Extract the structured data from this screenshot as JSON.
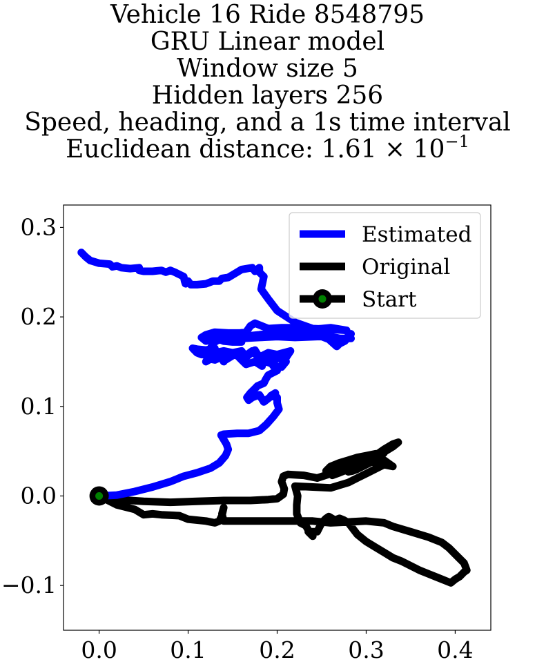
{
  "chart_data": {
    "type": "line",
    "title_lines": [
      "Vehicle 16 Ride 8548795",
      "GRU Linear model",
      "Window size 5",
      "Hidden layers 256",
      "Speed, heading, and a 1s time interval"
    ],
    "distance_label": "Euclidean distance: ",
    "distance_mantissa": "1.61",
    "distance_times": " × 10",
    "distance_exponent": "−1",
    "xlabel": "",
    "ylabel": "",
    "xlim": [
      -0.04,
      0.44
    ],
    "ylim": [
      -0.15,
      0.325
    ],
    "xticks": [
      0.0,
      0.1,
      0.2,
      0.3,
      0.4
    ],
    "xtick_labels": [
      "0.0",
      "0.1",
      "0.2",
      "0.3",
      "0.4"
    ],
    "yticks": [
      -0.1,
      0.0,
      0.1,
      0.2,
      0.3
    ],
    "ytick_labels": [
      "−0.1",
      "0.0",
      "0.1",
      "0.2",
      "0.3"
    ],
    "grid": false,
    "legend_position": "top-right",
    "series": [
      {
        "name": "Estimated",
        "color": "#0000ff",
        "points": [
          [
            0.0,
            0.0
          ],
          [
            0.02,
            0.001
          ],
          [
            0.04,
            0.005
          ],
          [
            0.06,
            0.01
          ],
          [
            0.08,
            0.016
          ],
          [
            0.095,
            0.022
          ],
          [
            0.11,
            0.026
          ],
          [
            0.125,
            0.031
          ],
          [
            0.135,
            0.037
          ],
          [
            0.142,
            0.045
          ],
          [
            0.145,
            0.052
          ],
          [
            0.143,
            0.058
          ],
          [
            0.14,
            0.063
          ],
          [
            0.137,
            0.068
          ],
          [
            0.14,
            0.069
          ],
          [
            0.155,
            0.07
          ],
          [
            0.168,
            0.07
          ],
          [
            0.18,
            0.073
          ],
          [
            0.188,
            0.08
          ],
          [
            0.196,
            0.089
          ],
          [
            0.202,
            0.097
          ],
          [
            0.2,
            0.104
          ],
          [
            0.2,
            0.11
          ],
          [
            0.193,
            0.112
          ],
          [
            0.198,
            0.115
          ],
          [
            0.185,
            0.105
          ],
          [
            0.18,
            0.113
          ],
          [
            0.172,
            0.11
          ],
          [
            0.168,
            0.107
          ],
          [
            0.166,
            0.11
          ],
          [
            0.17,
            0.115
          ],
          [
            0.175,
            0.12
          ],
          [
            0.178,
            0.123
          ],
          [
            0.185,
            0.126
          ],
          [
            0.187,
            0.13
          ],
          [
            0.19,
            0.135
          ],
          [
            0.2,
            0.14
          ],
          [
            0.195,
            0.146
          ],
          [
            0.205,
            0.144
          ],
          [
            0.21,
            0.15
          ],
          [
            0.202,
            0.155
          ],
          [
            0.195,
            0.15
          ],
          [
            0.185,
            0.153
          ],
          [
            0.183,
            0.145
          ],
          [
            0.175,
            0.15
          ],
          [
            0.165,
            0.147
          ],
          [
            0.16,
            0.152
          ],
          [
            0.155,
            0.157
          ],
          [
            0.147,
            0.16
          ],
          [
            0.14,
            0.15
          ],
          [
            0.137,
            0.155
          ],
          [
            0.13,
            0.152
          ],
          [
            0.125,
            0.153
          ],
          [
            0.12,
            0.15
          ],
          [
            0.125,
            0.16
          ],
          [
            0.13,
            0.165
          ],
          [
            0.12,
            0.163
          ],
          [
            0.11,
            0.164
          ],
          [
            0.105,
            0.165
          ],
          [
            0.11,
            0.16
          ],
          [
            0.115,
            0.158
          ],
          [
            0.12,
            0.158
          ],
          [
            0.13,
            0.16
          ],
          [
            0.14,
            0.162
          ],
          [
            0.15,
            0.16
          ],
          [
            0.16,
            0.162
          ],
          [
            0.165,
            0.155
          ],
          [
            0.175,
            0.163
          ],
          [
            0.18,
            0.155
          ],
          [
            0.19,
            0.16
          ],
          [
            0.2,
            0.158
          ],
          [
            0.215,
            0.162
          ],
          [
            0.207,
            0.15
          ],
          [
            0.199,
            0.158
          ],
          [
            0.193,
            0.148
          ],
          [
            0.182,
            0.152
          ],
          [
            0.172,
            0.162
          ],
          [
            0.162,
            0.155
          ],
          [
            0.152,
            0.158
          ],
          [
            0.142,
            0.152
          ],
          [
            0.135,
            0.16
          ],
          [
            0.125,
            0.165
          ],
          [
            0.13,
            0.172
          ],
          [
            0.135,
            0.175
          ],
          [
            0.14,
            0.173
          ],
          [
            0.15,
            0.172
          ],
          [
            0.16,
            0.172
          ],
          [
            0.15,
            0.175
          ],
          [
            0.16,
            0.176
          ],
          [
            0.18,
            0.177
          ],
          [
            0.2,
            0.178
          ],
          [
            0.22,
            0.177
          ],
          [
            0.245,
            0.178
          ],
          [
            0.26,
            0.178
          ],
          [
            0.27,
            0.176
          ],
          [
            0.283,
            0.176
          ],
          [
            0.28,
            0.18
          ],
          [
            0.283,
            0.181
          ],
          [
            0.276,
            0.173
          ],
          [
            0.27,
            0.17
          ],
          [
            0.267,
            0.167
          ],
          [
            0.258,
            0.175
          ],
          [
            0.245,
            0.18
          ],
          [
            0.225,
            0.185
          ],
          [
            0.205,
            0.185
          ],
          [
            0.2,
            0.186
          ],
          [
            0.195,
            0.182
          ],
          [
            0.18,
            0.18
          ],
          [
            0.16,
            0.178
          ],
          [
            0.14,
            0.177
          ],
          [
            0.13,
            0.175
          ],
          [
            0.12,
            0.173
          ],
          [
            0.115,
            0.177
          ],
          [
            0.12,
            0.18
          ],
          [
            0.13,
            0.183
          ],
          [
            0.145,
            0.182
          ],
          [
            0.158,
            0.182
          ],
          [
            0.165,
            0.183
          ],
          [
            0.17,
            0.19
          ],
          [
            0.175,
            0.193
          ],
          [
            0.19,
            0.187
          ],
          [
            0.205,
            0.188
          ],
          [
            0.22,
            0.188
          ],
          [
            0.24,
            0.186
          ],
          [
            0.26,
            0.188
          ],
          [
            0.278,
            0.185
          ],
          [
            0.262,
            0.186
          ],
          [
            0.24,
            0.187
          ],
          [
            0.22,
            0.194
          ],
          [
            0.2,
            0.207
          ],
          [
            0.19,
            0.22
          ],
          [
            0.182,
            0.231
          ],
          [
            0.185,
            0.245
          ],
          [
            0.18,
            0.25
          ],
          [
            0.18,
            0.255
          ],
          [
            0.175,
            0.251
          ],
          [
            0.172,
            0.255
          ],
          [
            0.16,
            0.253
          ],
          [
            0.155,
            0.25
          ],
          [
            0.145,
            0.244
          ],
          [
            0.138,
            0.243
          ],
          [
            0.135,
            0.24
          ],
          [
            0.128,
            0.24
          ],
          [
            0.12,
            0.237
          ],
          [
            0.11,
            0.236
          ],
          [
            0.103,
            0.236
          ],
          [
            0.1,
            0.24
          ],
          [
            0.097,
            0.237
          ],
          [
            0.096,
            0.24
          ],
          [
            0.095,
            0.245
          ],
          [
            0.085,
            0.25
          ],
          [
            0.08,
            0.252
          ],
          [
            0.075,
            0.25
          ],
          [
            0.07,
            0.252
          ],
          [
            0.06,
            0.251
          ],
          [
            0.05,
            0.251
          ],
          [
            0.045,
            0.252
          ],
          [
            0.045,
            0.255
          ],
          [
            0.035,
            0.254
          ],
          [
            0.025,
            0.255
          ],
          [
            0.02,
            0.257
          ],
          [
            0.015,
            0.256
          ],
          [
            0.012,
            0.259
          ],
          [
            0.0,
            0.26
          ],
          [
            -0.01,
            0.263
          ],
          [
            -0.015,
            0.267
          ],
          [
            -0.02,
            0.272
          ]
        ]
      },
      {
        "name": "Original",
        "color": "#000000",
        "points": [
          [
            0.0,
            0.0
          ],
          [
            0.02,
            -0.004
          ],
          [
            0.05,
            -0.006
          ],
          [
            0.08,
            -0.007
          ],
          [
            0.11,
            -0.006
          ],
          [
            0.14,
            -0.005
          ],
          [
            0.17,
            -0.005
          ],
          [
            0.19,
            -0.004
          ],
          [
            0.2,
            -0.003
          ],
          [
            0.207,
            0.002
          ],
          [
            0.208,
            0.008
          ],
          [
            0.205,
            0.016
          ],
          [
            0.207,
            0.022
          ],
          [
            0.212,
            0.024
          ],
          [
            0.23,
            0.023
          ],
          [
            0.245,
            0.02
          ],
          [
            0.26,
            0.025
          ],
          [
            0.27,
            0.028
          ],
          [
            0.28,
            0.031
          ],
          [
            0.29,
            0.035
          ],
          [
            0.3,
            0.038
          ],
          [
            0.31,
            0.043
          ],
          [
            0.32,
            0.049
          ],
          [
            0.33,
            0.055
          ],
          [
            0.336,
            0.06
          ],
          [
            0.33,
            0.058
          ],
          [
            0.32,
            0.052
          ],
          [
            0.31,
            0.045
          ],
          [
            0.3,
            0.04
          ],
          [
            0.29,
            0.036
          ],
          [
            0.28,
            0.03
          ],
          [
            0.27,
            0.026
          ],
          [
            0.262,
            0.023
          ],
          [
            0.26,
            0.025
          ],
          [
            0.265,
            0.03
          ],
          [
            0.27,
            0.035
          ],
          [
            0.28,
            0.04
          ],
          [
            0.29,
            0.043
          ],
          [
            0.3,
            0.045
          ],
          [
            0.31,
            0.047
          ],
          [
            0.32,
            0.048
          ],
          [
            0.31,
            0.04
          ],
          [
            0.3,
            0.035
          ],
          [
            0.29,
            0.03
          ],
          [
            0.285,
            0.028
          ],
          [
            0.28,
            0.027
          ],
          [
            0.27,
            0.032
          ],
          [
            0.26,
            0.03
          ],
          [
            0.255,
            0.028
          ],
          [
            0.26,
            0.033
          ],
          [
            0.27,
            0.037
          ],
          [
            0.28,
            0.04
          ],
          [
            0.29,
            0.042
          ],
          [
            0.3,
            0.04
          ],
          [
            0.31,
            0.037
          ],
          [
            0.32,
            0.04
          ],
          [
            0.33,
            0.033
          ],
          [
            0.32,
            0.035
          ],
          [
            0.31,
            0.03
          ],
          [
            0.3,
            0.025
          ],
          [
            0.29,
            0.02
          ],
          [
            0.28,
            0.015
          ],
          [
            0.27,
            0.012
          ],
          [
            0.26,
            0.009
          ],
          [
            0.24,
            0.01
          ],
          [
            0.22,
            0.011
          ],
          [
            0.223,
            0.0
          ],
          [
            0.222,
            -0.01
          ],
          [
            0.222,
            -0.02
          ],
          [
            0.226,
            -0.03
          ],
          [
            0.232,
            -0.033
          ],
          [
            0.235,
            -0.038
          ],
          [
            0.24,
            -0.045
          ],
          [
            0.235,
            -0.04
          ],
          [
            0.24,
            -0.04
          ],
          [
            0.245,
            -0.04
          ],
          [
            0.25,
            -0.03
          ],
          [
            0.255,
            -0.025
          ],
          [
            0.258,
            -0.023
          ],
          [
            0.265,
            -0.027
          ],
          [
            0.27,
            -0.025
          ],
          [
            0.275,
            -0.027
          ],
          [
            0.28,
            -0.03
          ],
          [
            0.29,
            -0.043
          ],
          [
            0.3,
            -0.051
          ],
          [
            0.31,
            -0.057
          ],
          [
            0.32,
            -0.063
          ],
          [
            0.33,
            -0.069
          ],
          [
            0.34,
            -0.073
          ],
          [
            0.35,
            -0.078
          ],
          [
            0.36,
            -0.083
          ],
          [
            0.37,
            -0.087
          ],
          [
            0.38,
            -0.091
          ],
          [
            0.39,
            -0.095
          ],
          [
            0.395,
            -0.097
          ],
          [
            0.4,
            -0.093
          ],
          [
            0.405,
            -0.09
          ],
          [
            0.41,
            -0.085
          ],
          [
            0.413,
            -0.083
          ],
          [
            0.41,
            -0.075
          ],
          [
            0.405,
            -0.07
          ],
          [
            0.4,
            -0.065
          ],
          [
            0.393,
            -0.058
          ],
          [
            0.385,
            -0.052
          ],
          [
            0.37,
            -0.046
          ],
          [
            0.35,
            -0.04
          ],
          [
            0.33,
            -0.034
          ],
          [
            0.32,
            -0.03
          ],
          [
            0.3,
            -0.028
          ],
          [
            0.28,
            -0.029
          ],
          [
            0.26,
            -0.03
          ],
          [
            0.24,
            -0.028
          ],
          [
            0.22,
            -0.028
          ],
          [
            0.2,
            -0.028
          ],
          [
            0.18,
            -0.028
          ],
          [
            0.16,
            -0.028
          ],
          [
            0.14,
            -0.028
          ],
          [
            0.138,
            -0.02
          ],
          [
            0.14,
            -0.013
          ],
          [
            0.138,
            -0.022
          ],
          [
            0.135,
            -0.028
          ],
          [
            0.13,
            -0.03
          ],
          [
            0.12,
            -0.028
          ],
          [
            0.1,
            -0.026
          ],
          [
            0.09,
            -0.022
          ],
          [
            0.07,
            -0.021
          ],
          [
            0.06,
            -0.02
          ],
          [
            0.05,
            -0.021
          ],
          [
            0.04,
            -0.015
          ],
          [
            0.02,
            -0.01
          ],
          [
            0.01,
            -0.005
          ],
          [
            0.0,
            0.0
          ]
        ]
      }
    ],
    "start_point": [
      0.0,
      0.0
    ],
    "start_color": "#008000",
    "legend": [
      {
        "label": "Estimated",
        "marker": "line",
        "color": "#0000ff"
      },
      {
        "label": "Original",
        "marker": "line",
        "color": "#000000"
      },
      {
        "label": "Start",
        "marker": "line-circle",
        "color": "#000000",
        "fill": "#008000"
      }
    ]
  }
}
